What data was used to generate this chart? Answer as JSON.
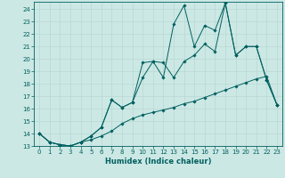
{
  "xlabel": "Humidex (Indice chaleur)",
  "background_color": "#cce8e4",
  "grid_color": "#b8d8d4",
  "line_color": "#006060",
  "xlim": [
    -0.5,
    23.5
  ],
  "ylim": [
    13,
    24.6
  ],
  "xticks": [
    0,
    1,
    2,
    3,
    4,
    5,
    6,
    7,
    8,
    9,
    10,
    11,
    12,
    13,
    14,
    15,
    16,
    17,
    18,
    19,
    20,
    21,
    22,
    23
  ],
  "yticks": [
    13,
    14,
    15,
    16,
    17,
    18,
    19,
    20,
    21,
    22,
    23,
    24
  ],
  "series1_x": [
    0,
    1,
    2,
    3,
    4,
    5,
    6,
    7,
    8,
    9,
    10,
    11,
    12,
    13,
    14,
    15,
    16,
    17,
    18,
    19,
    20,
    21,
    22,
    23
  ],
  "series1_y": [
    14.0,
    13.3,
    13.1,
    13.0,
    13.3,
    13.5,
    13.8,
    14.2,
    14.8,
    15.2,
    15.5,
    15.7,
    15.9,
    16.1,
    16.4,
    16.6,
    16.9,
    17.2,
    17.5,
    17.8,
    18.1,
    18.4,
    18.6,
    16.3
  ],
  "series2_x": [
    0,
    1,
    2,
    3,
    4,
    5,
    6,
    7,
    8,
    9,
    10,
    11,
    12,
    13,
    14,
    15,
    16,
    17,
    18,
    19,
    20,
    21,
    22,
    23
  ],
  "series2_y": [
    14.0,
    13.3,
    13.1,
    13.0,
    13.3,
    13.8,
    14.5,
    16.7,
    16.1,
    16.5,
    18.5,
    19.8,
    19.7,
    18.5,
    19.8,
    20.3,
    21.2,
    20.6,
    24.5,
    20.3,
    21.0,
    21.0,
    18.3,
    16.3
  ],
  "series3_x": [
    0,
    1,
    2,
    3,
    4,
    5,
    6,
    7,
    8,
    9,
    10,
    11,
    12,
    13,
    14,
    15,
    16,
    17,
    18,
    19,
    20,
    21,
    22,
    23
  ],
  "series3_y": [
    14.0,
    13.3,
    13.1,
    13.0,
    13.3,
    13.8,
    14.5,
    16.7,
    16.1,
    16.5,
    19.7,
    19.8,
    18.5,
    22.8,
    24.3,
    21.0,
    22.7,
    22.3,
    24.5,
    20.3,
    21.0,
    21.0,
    18.3,
    16.3
  ]
}
